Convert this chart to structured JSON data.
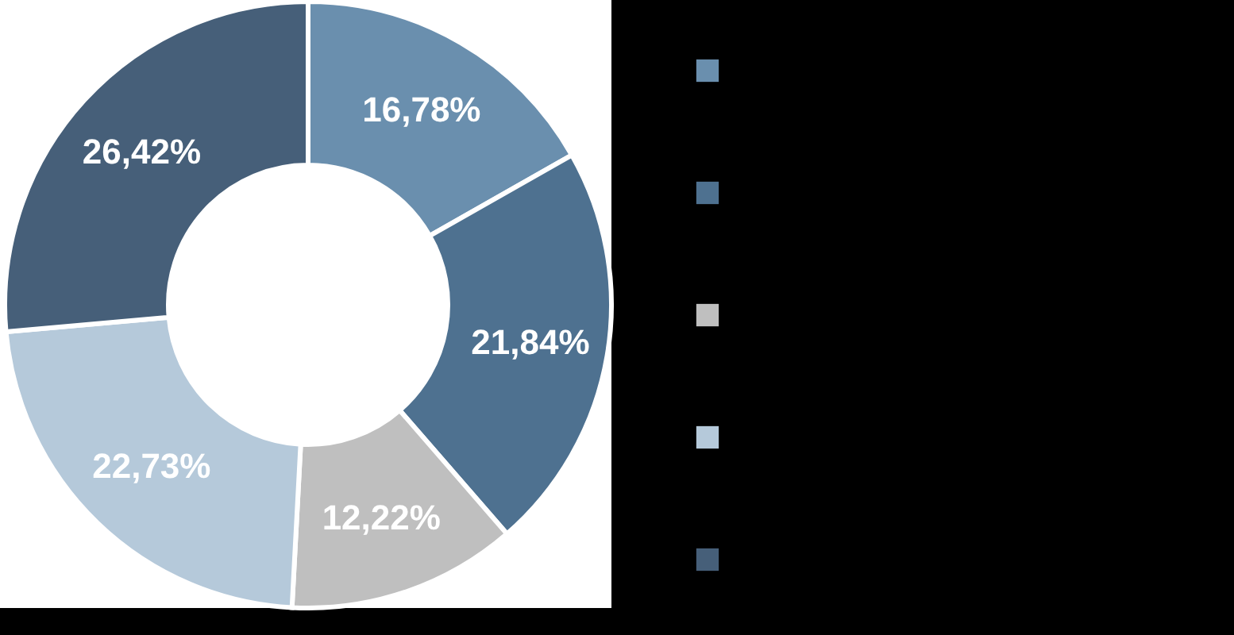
{
  "chart_data": {
    "type": "donut",
    "categories": [
      null,
      null,
      null,
      null,
      null
    ],
    "values": [
      16.78,
      21.84,
      12.22,
      22.73,
      26.42
    ],
    "value_labels": [
      "16,78%",
      "21,84%",
      "12,22%",
      "22,73%",
      "26,42%"
    ],
    "colors": [
      "#6a8fae",
      "#4e7190",
      "#bfbfbf",
      "#b5c9da",
      "#465f79"
    ]
  }
}
